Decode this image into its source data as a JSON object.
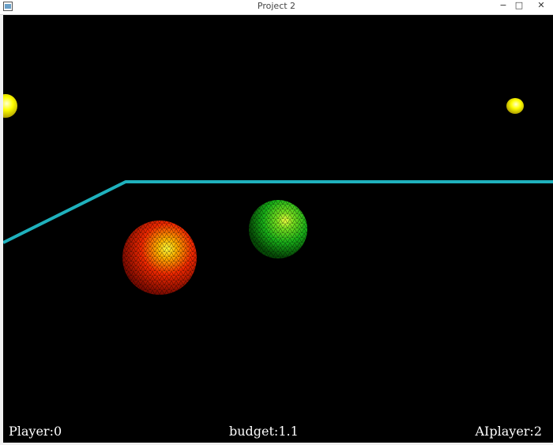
{
  "window": {
    "title": "Project 2",
    "controls": {
      "minimize": "−",
      "maximize": "□",
      "close": "✕"
    }
  },
  "scene": {
    "background_color": "#000000",
    "track_color": "#1fb1bd",
    "objects": [
      {
        "name": "yellow-ball-left",
        "color": "#ffff00"
      },
      {
        "name": "yellow-ball-right",
        "color": "#ffff00"
      },
      {
        "name": "red-ball",
        "color": "#e81b00"
      },
      {
        "name": "green-ball",
        "color": "#18c218"
      }
    ]
  },
  "hud": {
    "player": "Player:0",
    "budget": "budget:1.1",
    "ai_player": "AIplayer:2"
  }
}
